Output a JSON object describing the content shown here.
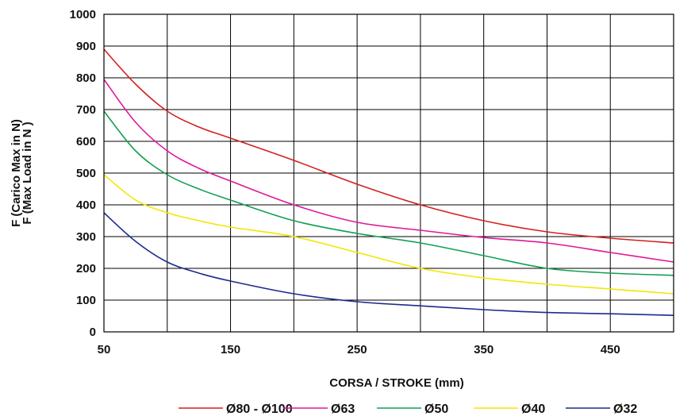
{
  "chart_data": {
    "type": "line",
    "title": "",
    "xlabel": "CORSA / STROKE (mm)",
    "ylabel_lines": [
      "F (Carico Max in N)",
      "F (Max Load in N )"
    ],
    "xlim": [
      50,
      500
    ],
    "ylim": [
      0,
      1000
    ],
    "x_ticks": [
      50,
      150,
      250,
      350,
      450
    ],
    "x_gridlines": [
      50,
      100,
      150,
      200,
      250,
      300,
      350,
      400,
      450,
      500
    ],
    "y_ticks": [
      0,
      100,
      200,
      300,
      400,
      500,
      600,
      700,
      800,
      900,
      1000
    ],
    "grid": true,
    "legend_position": "bottom",
    "x": [
      50,
      75,
      100,
      125,
      150,
      200,
      250,
      300,
      350,
      400,
      450,
      500
    ],
    "series": [
      {
        "name": "Ø80 - Ø100",
        "color": "#d42020",
        "values": [
          890,
          780,
          695,
          645,
          610,
          540,
          465,
          400,
          350,
          315,
          295,
          280
        ]
      },
      {
        "name": "Ø63",
        "color": "#e0189a",
        "values": [
          795,
          660,
          570,
          515,
          475,
          400,
          345,
          320,
          297,
          280,
          250,
          220
        ]
      },
      {
        "name": "Ø50",
        "color": "#12a050",
        "values": [
          695,
          570,
          495,
          450,
          415,
          350,
          310,
          280,
          240,
          200,
          185,
          178
        ]
      },
      {
        "name": "Ø40",
        "color": "#f0e800",
        "values": [
          495,
          415,
          375,
          350,
          330,
          300,
          250,
          200,
          170,
          150,
          135,
          120
        ]
      },
      {
        "name": "Ø32",
        "color": "#1c2a8c",
        "values": [
          375,
          285,
          220,
          185,
          160,
          120,
          95,
          82,
          70,
          61,
          57,
          52
        ]
      }
    ]
  }
}
